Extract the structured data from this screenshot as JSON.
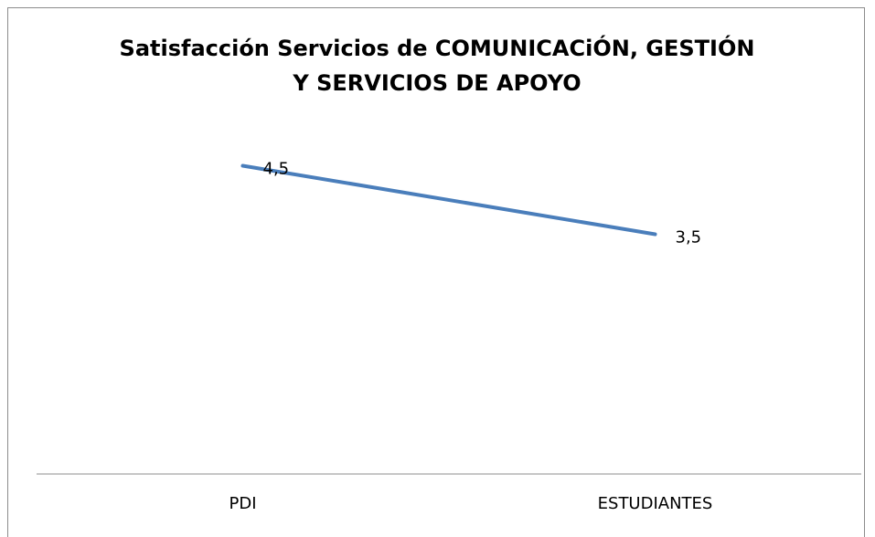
{
  "chart_data": {
    "type": "line",
    "title": "Satisfacción Servicios de COMUNICACiÓN, GESTIÓN Y SERVICIOS DE APOYO",
    "categories": [
      "PDI",
      "ESTUDIANTES"
    ],
    "series": [
      {
        "color": "#4a7ebb",
        "values": [
          4.5,
          3.5
        ],
        "value_labels": [
          "4,5",
          "3,5"
        ]
      }
    ],
    "ylim": [
      0,
      6
    ]
  }
}
